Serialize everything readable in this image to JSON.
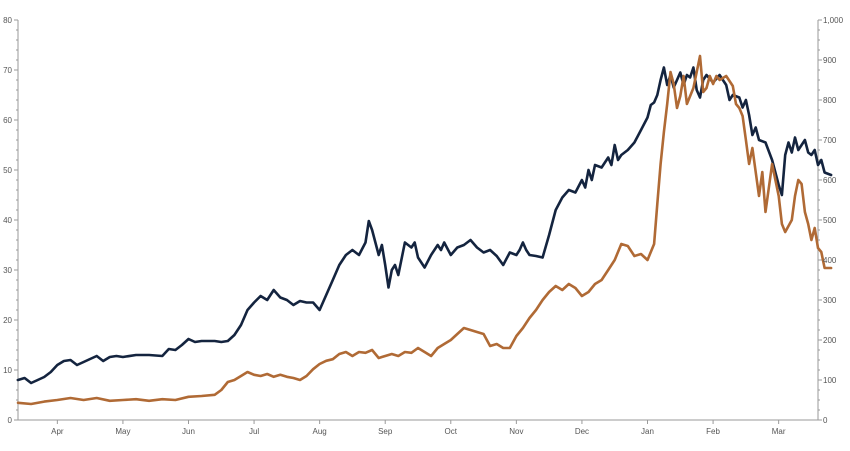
{
  "chart_data": {
    "type": "line",
    "title": "",
    "xlabel": "",
    "ylabel_left": "",
    "ylabel_right": "",
    "x_tick_labels": [
      "Apr",
      "May",
      "Jun",
      "Jul",
      "Aug",
      "Sep",
      "Oct",
      "Nov",
      "Dec",
      "Jan",
      "Feb",
      "Mar"
    ],
    "x_tick_positions": [
      0.6,
      1.6,
      2.6,
      3.6,
      4.6,
      5.6,
      6.6,
      7.6,
      8.6,
      9.6,
      10.6,
      11.6
    ],
    "xlim": [
      0,
      12.2
    ],
    "y_left": {
      "lim": [
        0,
        80
      ],
      "ticks": [
        0,
        10,
        20,
        30,
        40,
        50,
        60,
        70,
        80
      ],
      "tick_labels": [
        "0",
        "10",
        "20",
        "30",
        "40",
        "50",
        "60",
        "70",
        "80"
      ]
    },
    "y_right": {
      "lim": [
        0,
        1000
      ],
      "ticks": [
        0,
        100,
        200,
        300,
        400,
        500,
        600,
        700,
        800,
        900,
        1000
      ],
      "tick_labels": [
        "0",
        "100",
        "200",
        "300",
        "400",
        "500",
        "600",
        "700",
        "800",
        "900",
        "1,000"
      ]
    },
    "grid": false,
    "legend": "none",
    "series": [
      {
        "axis": "left",
        "color": "#14243f",
        "points": [
          [
            0.0,
            8.0
          ],
          [
            0.1,
            8.4
          ],
          [
            0.2,
            7.4
          ],
          [
            0.3,
            8.0
          ],
          [
            0.4,
            8.6
          ],
          [
            0.5,
            9.6
          ],
          [
            0.6,
            11.0
          ],
          [
            0.7,
            11.8
          ],
          [
            0.8,
            12.0
          ],
          [
            0.9,
            11.0
          ],
          [
            1.0,
            11.6
          ],
          [
            1.1,
            12.2
          ],
          [
            1.2,
            12.8
          ],
          [
            1.3,
            11.8
          ],
          [
            1.4,
            12.6
          ],
          [
            1.5,
            12.8
          ],
          [
            1.6,
            12.6
          ],
          [
            1.8,
            13.0
          ],
          [
            2.0,
            13.0
          ],
          [
            2.2,
            12.8
          ],
          [
            2.3,
            14.2
          ],
          [
            2.4,
            14.0
          ],
          [
            2.5,
            15.0
          ],
          [
            2.6,
            16.2
          ],
          [
            2.7,
            15.6
          ],
          [
            2.8,
            15.8
          ],
          [
            3.0,
            15.8
          ],
          [
            3.1,
            15.6
          ],
          [
            3.2,
            15.8
          ],
          [
            3.3,
            17.0
          ],
          [
            3.4,
            19.0
          ],
          [
            3.5,
            22.0
          ],
          [
            3.6,
            23.5
          ],
          [
            3.7,
            24.8
          ],
          [
            3.8,
            24.0
          ],
          [
            3.9,
            26.0
          ],
          [
            4.0,
            24.5
          ],
          [
            4.1,
            24.0
          ],
          [
            4.2,
            23.0
          ],
          [
            4.3,
            23.8
          ],
          [
            4.4,
            23.5
          ],
          [
            4.5,
            23.5
          ],
          [
            4.6,
            22.0
          ],
          [
            4.7,
            25.0
          ],
          [
            4.8,
            28.0
          ],
          [
            4.9,
            31.0
          ],
          [
            5.0,
            33.0
          ],
          [
            5.1,
            34.0
          ],
          [
            5.2,
            33.0
          ],
          [
            5.3,
            35.5
          ],
          [
            5.35,
            39.8
          ],
          [
            5.4,
            38.0
          ],
          [
            5.45,
            35.5
          ],
          [
            5.5,
            33.0
          ],
          [
            5.55,
            35.0
          ],
          [
            5.6,
            31.0
          ],
          [
            5.65,
            26.5
          ],
          [
            5.7,
            30.0
          ],
          [
            5.75,
            31.0
          ],
          [
            5.8,
            29.0
          ],
          [
            5.9,
            35.5
          ],
          [
            6.0,
            34.5
          ],
          [
            6.05,
            35.5
          ],
          [
            6.1,
            32.5
          ],
          [
            6.2,
            30.5
          ],
          [
            6.3,
            33.0
          ],
          [
            6.4,
            35.0
          ],
          [
            6.45,
            34.0
          ],
          [
            6.5,
            35.5
          ],
          [
            6.6,
            33.0
          ],
          [
            6.7,
            34.5
          ],
          [
            6.8,
            35.0
          ],
          [
            6.9,
            36.0
          ],
          [
            7.0,
            34.5
          ],
          [
            7.1,
            33.5
          ],
          [
            7.2,
            34.0
          ],
          [
            7.3,
            32.8
          ],
          [
            7.4,
            31.0
          ],
          [
            7.5,
            33.5
          ],
          [
            7.6,
            33.0
          ],
          [
            7.65,
            34.0
          ],
          [
            7.7,
            35.5
          ],
          [
            7.75,
            34.0
          ],
          [
            7.8,
            33.0
          ],
          [
            7.9,
            32.8
          ],
          [
            8.0,
            32.5
          ],
          [
            8.1,
            37.0
          ],
          [
            8.2,
            42.0
          ],
          [
            8.3,
            44.5
          ],
          [
            8.4,
            46.0
          ],
          [
            8.5,
            45.5
          ],
          [
            8.6,
            48.0
          ],
          [
            8.65,
            46.5
          ],
          [
            8.7,
            50.0
          ],
          [
            8.75,
            48.0
          ],
          [
            8.8,
            51.0
          ],
          [
            8.9,
            50.5
          ],
          [
            9.0,
            52.5
          ],
          [
            9.05,
            51.0
          ],
          [
            9.1,
            55.0
          ],
          [
            9.15,
            52.0
          ],
          [
            9.2,
            53.0
          ],
          [
            9.3,
            54.0
          ],
          [
            9.4,
            55.5
          ],
          [
            9.5,
            58.0
          ],
          [
            9.6,
            60.5
          ],
          [
            9.65,
            63.0
          ],
          [
            9.7,
            63.5
          ],
          [
            9.75,
            65.0
          ],
          [
            9.8,
            68.0
          ],
          [
            9.85,
            70.5
          ],
          [
            9.9,
            67.0
          ],
          [
            9.95,
            69.0
          ],
          [
            10.0,
            66.5
          ],
          [
            10.05,
            68.0
          ],
          [
            10.1,
            69.5
          ],
          [
            10.15,
            67.0
          ],
          [
            10.2,
            69.0
          ],
          [
            10.25,
            68.5
          ],
          [
            10.3,
            70.5
          ],
          [
            10.35,
            66.0
          ],
          [
            10.4,
            64.5
          ],
          [
            10.45,
            68.0
          ],
          [
            10.5,
            69.0
          ],
          [
            10.6,
            67.5
          ],
          [
            10.7,
            69.0
          ],
          [
            10.8,
            67.0
          ],
          [
            10.85,
            64.0
          ],
          [
            10.9,
            65.0
          ],
          [
            11.0,
            64.5
          ],
          [
            11.05,
            62.5
          ],
          [
            11.1,
            64.0
          ],
          [
            11.15,
            61.0
          ],
          [
            11.2,
            57.0
          ],
          [
            11.25,
            58.5
          ],
          [
            11.3,
            56.0
          ],
          [
            11.4,
            55.5
          ],
          [
            11.5,
            52.0
          ],
          [
            11.6,
            47.0
          ],
          [
            11.65,
            45.0
          ],
          [
            11.7,
            53.0
          ],
          [
            11.75,
            55.5
          ],
          [
            11.8,
            53.5
          ],
          [
            11.85,
            56.5
          ],
          [
            11.9,
            54.0
          ],
          [
            12.0,
            56.0
          ],
          [
            12.05,
            53.5
          ],
          [
            12.1,
            53.0
          ],
          [
            12.15,
            54.0
          ],
          [
            12.2,
            51.0
          ],
          [
            12.25,
            52.0
          ],
          [
            12.3,
            49.5
          ],
          [
            12.4,
            49.0
          ]
        ]
      },
      {
        "axis": "right",
        "color": "#b06a35",
        "points": [
          [
            0.0,
            43
          ],
          [
            0.2,
            40
          ],
          [
            0.4,
            46
          ],
          [
            0.6,
            50
          ],
          [
            0.8,
            55
          ],
          [
            1.0,
            50
          ],
          [
            1.2,
            55
          ],
          [
            1.4,
            48
          ],
          [
            1.6,
            50
          ],
          [
            1.8,
            52
          ],
          [
            2.0,
            48
          ],
          [
            2.2,
            52
          ],
          [
            2.4,
            50
          ],
          [
            2.6,
            58
          ],
          [
            2.8,
            60
          ],
          [
            3.0,
            63
          ],
          [
            3.1,
            75
          ],
          [
            3.2,
            95
          ],
          [
            3.3,
            100
          ],
          [
            3.4,
            110
          ],
          [
            3.5,
            120
          ],
          [
            3.6,
            113
          ],
          [
            3.7,
            110
          ],
          [
            3.8,
            115
          ],
          [
            3.9,
            108
          ],
          [
            4.0,
            113
          ],
          [
            4.1,
            108
          ],
          [
            4.2,
            105
          ],
          [
            4.3,
            100
          ],
          [
            4.4,
            110
          ],
          [
            4.5,
            127
          ],
          [
            4.6,
            140
          ],
          [
            4.7,
            148
          ],
          [
            4.8,
            152
          ],
          [
            4.9,
            165
          ],
          [
            5.0,
            170
          ],
          [
            5.1,
            160
          ],
          [
            5.2,
            170
          ],
          [
            5.3,
            168
          ],
          [
            5.4,
            175
          ],
          [
            5.5,
            155
          ],
          [
            5.6,
            160
          ],
          [
            5.7,
            165
          ],
          [
            5.8,
            160
          ],
          [
            5.9,
            170
          ],
          [
            6.0,
            168
          ],
          [
            6.1,
            180
          ],
          [
            6.2,
            170
          ],
          [
            6.3,
            160
          ],
          [
            6.4,
            180
          ],
          [
            6.5,
            190
          ],
          [
            6.6,
            200
          ],
          [
            6.7,
            215
          ],
          [
            6.8,
            230
          ],
          [
            6.9,
            225
          ],
          [
            7.0,
            220
          ],
          [
            7.1,
            215
          ],
          [
            7.2,
            185
          ],
          [
            7.3,
            190
          ],
          [
            7.4,
            180
          ],
          [
            7.5,
            180
          ],
          [
            7.6,
            210
          ],
          [
            7.7,
            230
          ],
          [
            7.8,
            255
          ],
          [
            7.9,
            275
          ],
          [
            8.0,
            300
          ],
          [
            8.1,
            320
          ],
          [
            8.2,
            335
          ],
          [
            8.3,
            325
          ],
          [
            8.4,
            340
          ],
          [
            8.5,
            330
          ],
          [
            8.6,
            310
          ],
          [
            8.7,
            320
          ],
          [
            8.8,
            340
          ],
          [
            8.9,
            350
          ],
          [
            9.0,
            375
          ],
          [
            9.1,
            400
          ],
          [
            9.2,
            440
          ],
          [
            9.3,
            435
          ],
          [
            9.4,
            410
          ],
          [
            9.5,
            415
          ],
          [
            9.6,
            400
          ],
          [
            9.7,
            440
          ],
          [
            9.75,
            540
          ],
          [
            9.8,
            640
          ],
          [
            9.85,
            720
          ],
          [
            9.9,
            790
          ],
          [
            9.95,
            870
          ],
          [
            10.0,
            840
          ],
          [
            10.05,
            780
          ],
          [
            10.1,
            810
          ],
          [
            10.15,
            860
          ],
          [
            10.2,
            790
          ],
          [
            10.3,
            830
          ],
          [
            10.35,
            870
          ],
          [
            10.4,
            910
          ],
          [
            10.45,
            820
          ],
          [
            10.5,
            830
          ],
          [
            10.55,
            860
          ],
          [
            10.6,
            840
          ],
          [
            10.65,
            860
          ],
          [
            10.7,
            850
          ],
          [
            10.8,
            860
          ],
          [
            10.9,
            835
          ],
          [
            10.95,
            790
          ],
          [
            11.0,
            780
          ],
          [
            11.05,
            760
          ],
          [
            11.1,
            700
          ],
          [
            11.15,
            640
          ],
          [
            11.2,
            680
          ],
          [
            11.3,
            560
          ],
          [
            11.35,
            620
          ],
          [
            11.4,
            520
          ],
          [
            11.5,
            640
          ],
          [
            11.6,
            560
          ],
          [
            11.65,
            490
          ],
          [
            11.7,
            470
          ],
          [
            11.8,
            500
          ],
          [
            11.85,
            560
          ],
          [
            11.9,
            600
          ],
          [
            11.95,
            590
          ],
          [
            12.0,
            520
          ],
          [
            12.05,
            490
          ],
          [
            12.1,
            450
          ],
          [
            12.15,
            480
          ],
          [
            12.2,
            430
          ],
          [
            12.25,
            420
          ],
          [
            12.3,
            380
          ],
          [
            12.4,
            380
          ]
        ]
      }
    ]
  }
}
